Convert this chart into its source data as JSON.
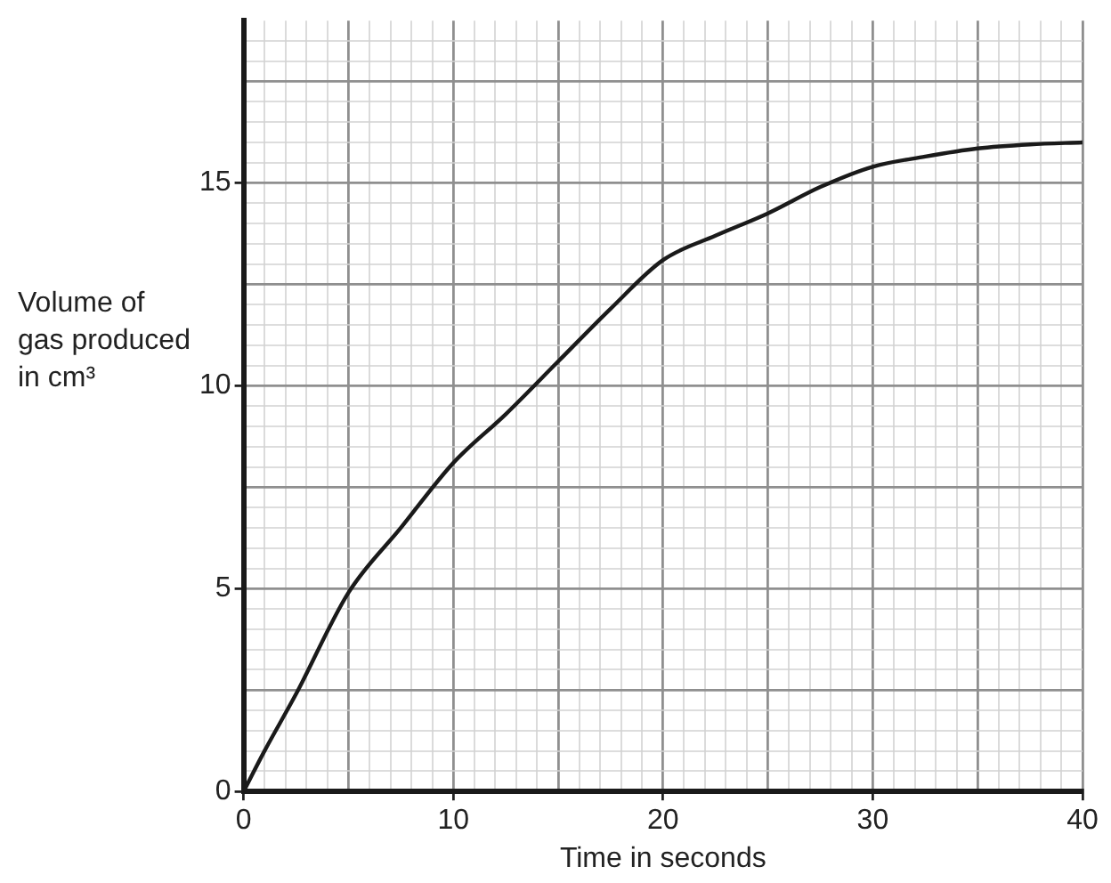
{
  "chart_data": {
    "type": "line",
    "xlabel": "Time in seconds",
    "ylabel": "Volume of gas produced in cm³",
    "x": [
      0,
      1,
      2.5,
      5,
      7.5,
      10,
      12.5,
      15,
      17.5,
      20,
      22.5,
      25,
      27.5,
      30,
      32.5,
      35,
      37.5,
      40
    ],
    "series": [
      {
        "color": "#1a1a1a",
        "values": [
          0,
          1.0,
          2.4,
          4.9,
          6.5,
          8.1,
          9.3,
          10.6,
          11.9,
          13.1,
          13.7,
          14.25,
          14.9,
          15.4,
          15.65,
          15.85,
          15.95,
          16.0
        ]
      }
    ],
    "xlim": [
      0,
      40
    ],
    "ylim": [
      0,
      19
    ],
    "xticks": [
      0,
      {
        "value": 1,
        "label": null
      },
      {
        "value": 2,
        "label": null
      },
      {
        "value": 3,
        "label": null
      },
      {
        "value": 4,
        "label": null
      },
      {
        "value": 5,
        "label": null
      },
      {
        "value": 6,
        "label": null
      },
      {
        "value": 7,
        "label": null
      },
      {
        "value": 8,
        "label": null
      },
      {
        "value": 9,
        "label": null
      },
      10,
      {
        "value": 11,
        "label": null
      },
      {
        "value": 12,
        "label": null
      },
      {
        "value": 13,
        "label": null
      },
      {
        "value": 14,
        "label": null
      },
      {
        "value": 15,
        "label": null
      },
      {
        "value": 16,
        "label": null
      },
      {
        "value": 17,
        "label": null
      },
      {
        "value": 18,
        "label": null
      },
      {
        "value": 19,
        "label": null
      },
      20,
      {
        "value": 21,
        "label": null
      },
      {
        "value": 22,
        "label": null
      },
      {
        "value": 23,
        "label": null
      },
      {
        "value": 24,
        "label": null
      },
      {
        "value": 25,
        "label": null
      },
      {
        "value": 26,
        "label": null
      },
      {
        "value": 27,
        "label": null
      },
      {
        "value": 28,
        "label": null
      },
      {
        "value": 29,
        "label": null
      },
      30,
      {
        "value": 31,
        "label": null
      },
      {
        "value": 32,
        "label": null
      },
      {
        "value": 33,
        "label": null
      },
      {
        "value": 34,
        "label": null
      },
      {
        "value": 35,
        "label": null
      },
      {
        "value": 36,
        "label": null
      },
      {
        "value": 37,
        "label": null
      },
      {
        "value": 38,
        "label": null
      },
      {
        "value": 39,
        "label": null
      },
      40
    ],
    "yticks": [
      0,
      {
        "value": 0.5,
        "label": null
      },
      {
        "value": 1,
        "label": null
      },
      {
        "value": 1.5,
        "label": null
      },
      {
        "value": 2,
        "label": null
      },
      {
        "value": 2.5,
        "label": null
      },
      {
        "value": 3,
        "label": null
      },
      {
        "value": 3.5,
        "label": null
      },
      {
        "value": 4,
        "label": null
      },
      {
        "value": 4.5,
        "label": null
      },
      5,
      {
        "value": 5.5,
        "label": null
      },
      {
        "value": 6,
        "label": null
      },
      {
        "value": 6.5,
        "label": null
      },
      {
        "value": 7,
        "label": null
      },
      {
        "value": 7.5,
        "label": null
      },
      {
        "value": 8,
        "label": null
      },
      {
        "value": 8.5,
        "label": null
      },
      {
        "value": 9,
        "label": null
      },
      {
        "value": 9.5,
        "label": null
      },
      10,
      {
        "value": 10.5,
        "label": null
      },
      {
        "value": 11,
        "label": null
      },
      {
        "value": 11.5,
        "label": null
      },
      {
        "value": 12,
        "label": null
      },
      {
        "value": 12.5,
        "label": null
      },
      {
        "value": 13,
        "label": null
      },
      {
        "value": 13.5,
        "label": null
      },
      {
        "value": 14,
        "label": null
      },
      {
        "value": 14.5,
        "label": null
      },
      15,
      {
        "value": 15.5,
        "label": null
      },
      {
        "value": 16,
        "label": null
      },
      {
        "value": 16.5,
        "label": null
      },
      {
        "value": 17,
        "label": null
      },
      {
        "value": 17.5,
        "label": null
      },
      {
        "value": 18,
        "label": null
      },
      {
        "value": 18.5,
        "label": null
      }
    ],
    "grid": true,
    "marker": "none",
    "line_style": "solid"
  }
}
